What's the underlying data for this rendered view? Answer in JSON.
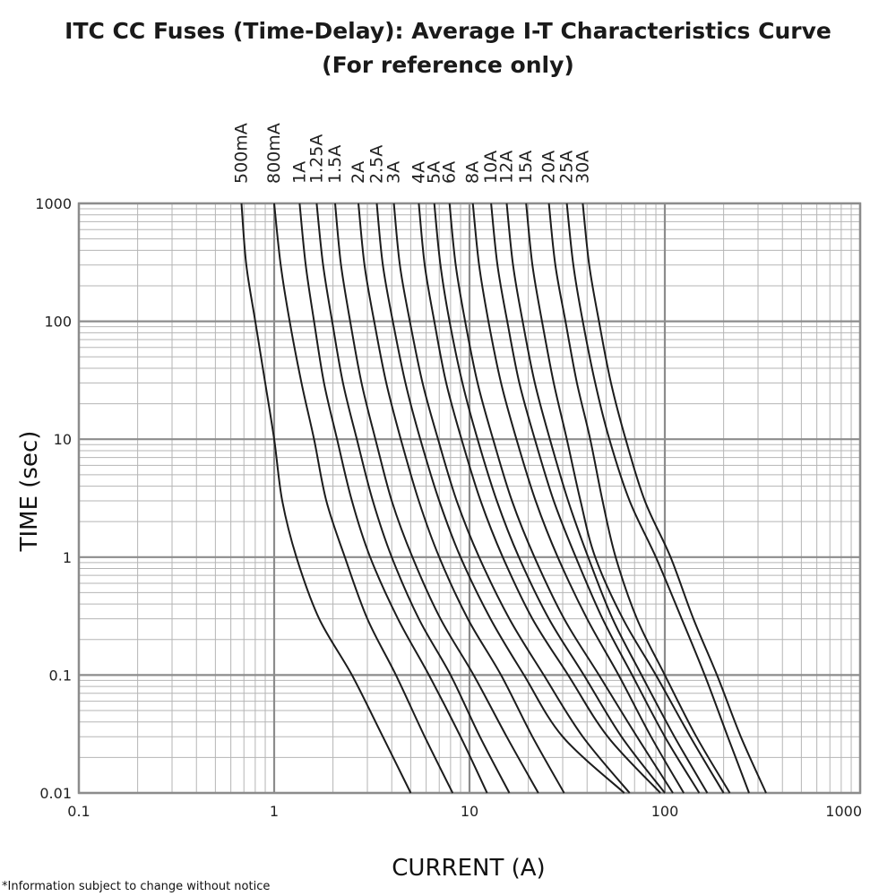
{
  "chart_data": {
    "type": "line",
    "title": "ITC CC Fuses (Time-Delay): Average I-T Characteristics Curve",
    "subtitle": "(For reference only)",
    "xlabel": "CURRENT (A)",
    "ylabel": "TIME (sec)",
    "xscale": "log",
    "yscale": "log",
    "xlim": [
      0.1,
      1000
    ],
    "ylim": [
      0.01,
      1000
    ],
    "x_ticks": [
      "0.1",
      "1",
      "10",
      "100",
      "1000"
    ],
    "y_ticks": [
      "0.01",
      "0.1",
      "1",
      "10",
      "100",
      "1000"
    ],
    "grid": true,
    "series": [
      {
        "name": "500mA",
        "points": [
          [
            0.68,
            1000
          ],
          [
            0.72,
            300
          ],
          [
            0.8,
            100
          ],
          [
            0.9,
            30
          ],
          [
            1.0,
            10
          ],
          [
            1.1,
            3
          ],
          [
            1.3,
            1
          ],
          [
            1.7,
            0.3
          ],
          [
            2.5,
            0.1
          ],
          [
            3.6,
            0.03
          ],
          [
            5.0,
            0.01
          ]
        ]
      },
      {
        "name": "800mA",
        "points": [
          [
            1.0,
            1000
          ],
          [
            1.08,
            300
          ],
          [
            1.2,
            100
          ],
          [
            1.38,
            30
          ],
          [
            1.6,
            10
          ],
          [
            1.85,
            3
          ],
          [
            2.3,
            1
          ],
          [
            3.0,
            0.3
          ],
          [
            4.2,
            0.1
          ],
          [
            5.9,
            0.03
          ],
          [
            8.2,
            0.01
          ]
        ]
      },
      {
        "name": "1A",
        "points": [
          [
            1.35,
            1000
          ],
          [
            1.45,
            300
          ],
          [
            1.6,
            100
          ],
          [
            1.8,
            30
          ],
          [
            2.1,
            10
          ],
          [
            2.5,
            3
          ],
          [
            3.1,
            1
          ],
          [
            4.3,
            0.3
          ],
          [
            6.2,
            0.1
          ],
          [
            9.0,
            0.03
          ],
          [
            12.3,
            0.01
          ]
        ]
      },
      {
        "name": "1.25A",
        "points": [
          [
            1.65,
            1000
          ],
          [
            1.78,
            300
          ],
          [
            1.98,
            100
          ],
          [
            2.25,
            30
          ],
          [
            2.65,
            10
          ],
          [
            3.2,
            3
          ],
          [
            4.0,
            1
          ],
          [
            5.5,
            0.3
          ],
          [
            8.0,
            0.1
          ],
          [
            11.3,
            0.03
          ],
          [
            16.0,
            0.01
          ]
        ]
      },
      {
        "name": "1.5A",
        "points": [
          [
            2.05,
            1000
          ],
          [
            2.2,
            300
          ],
          [
            2.45,
            100
          ],
          [
            2.8,
            30
          ],
          [
            3.3,
            10
          ],
          [
            4.0,
            3
          ],
          [
            5.1,
            1
          ],
          [
            7.1,
            0.3
          ],
          [
            10.5,
            0.1
          ],
          [
            15.5,
            0.03
          ],
          [
            22.5,
            0.01
          ]
        ]
      },
      {
        "name": "2A",
        "points": [
          [
            2.7,
            1000
          ],
          [
            2.9,
            300
          ],
          [
            3.25,
            100
          ],
          [
            3.75,
            30
          ],
          [
            4.45,
            10
          ],
          [
            5.5,
            3
          ],
          [
            7.0,
            1
          ],
          [
            9.8,
            0.3
          ],
          [
            14.5,
            0.1
          ],
          [
            21.0,
            0.03
          ],
          [
            30.5,
            0.01
          ]
        ]
      },
      {
        "name": "2.5A",
        "points": [
          [
            3.35,
            1000
          ],
          [
            3.6,
            300
          ],
          [
            4.05,
            100
          ],
          [
            4.7,
            30
          ],
          [
            5.6,
            10
          ],
          [
            7.0,
            3
          ],
          [
            9.0,
            1
          ],
          [
            12.8,
            0.3
          ],
          [
            19.0,
            0.1
          ],
          [
            30.0,
            0.03
          ],
          [
            62.0,
            0.01
          ]
        ]
      },
      {
        "name": "3A",
        "points": [
          [
            4.1,
            1000
          ],
          [
            4.4,
            300
          ],
          [
            4.95,
            100
          ],
          [
            5.75,
            30
          ],
          [
            6.9,
            10
          ],
          [
            8.6,
            3
          ],
          [
            11.2,
            1
          ],
          [
            16.0,
            0.3
          ],
          [
            24.0,
            0.1
          ],
          [
            38.0,
            0.03
          ],
          [
            66.0,
            0.01
          ]
        ]
      },
      {
        "name": "4A",
        "points": [
          [
            5.5,
            1000
          ],
          [
            5.9,
            300
          ],
          [
            6.6,
            100
          ],
          [
            7.6,
            30
          ],
          [
            9.1,
            10
          ],
          [
            11.4,
            3
          ],
          [
            14.8,
            1
          ],
          [
            21.0,
            0.3
          ],
          [
            32.0,
            0.1
          ],
          [
            51.0,
            0.03
          ],
          [
            95.0,
            0.01
          ]
        ]
      },
      {
        "name": "5A",
        "points": [
          [
            6.6,
            1000
          ],
          [
            7.1,
            300
          ],
          [
            7.9,
            100
          ],
          [
            9.2,
            30
          ],
          [
            11.0,
            10
          ],
          [
            13.8,
            3
          ],
          [
            17.9,
            1
          ],
          [
            25.5,
            0.3
          ],
          [
            38.5,
            0.1
          ],
          [
            60.0,
            0.03
          ],
          [
            100.0,
            0.01
          ]
        ]
      },
      {
        "name": "6A",
        "points": [
          [
            7.9,
            1000
          ],
          [
            8.5,
            300
          ],
          [
            9.5,
            100
          ],
          [
            11.0,
            30
          ],
          [
            13.2,
            10
          ],
          [
            16.5,
            3
          ],
          [
            21.5,
            1
          ],
          [
            30.5,
            0.3
          ],
          [
            46.0,
            0.1
          ],
          [
            72.0,
            0.03
          ],
          [
            110.0,
            0.01
          ]
        ]
      },
      {
        "name": "8A",
        "points": [
          [
            10.4,
            1000
          ],
          [
            11.2,
            300
          ],
          [
            12.5,
            100
          ],
          [
            14.5,
            30
          ],
          [
            17.4,
            10
          ],
          [
            21.8,
            3
          ],
          [
            28.3,
            1
          ],
          [
            40.0,
            0.3
          ],
          [
            58.0,
            0.1
          ],
          [
            85.0,
            0.03
          ],
          [
            125.0,
            0.01
          ]
        ]
      },
      {
        "name": "10A",
        "points": [
          [
            12.9,
            1000
          ],
          [
            13.9,
            300
          ],
          [
            15.6,
            100
          ],
          [
            18.0,
            30
          ],
          [
            21.6,
            10
          ],
          [
            27.0,
            3
          ],
          [
            35.0,
            1
          ],
          [
            48.0,
            0.3
          ],
          [
            68.0,
            0.1
          ],
          [
            100.0,
            0.03
          ],
          [
            150.0,
            0.01
          ]
        ]
      },
      {
        "name": "12A",
        "points": [
          [
            15.5,
            1000
          ],
          [
            16.7,
            300
          ],
          [
            18.7,
            100
          ],
          [
            21.6,
            30
          ],
          [
            25.8,
            10
          ],
          [
            32.0,
            3
          ],
          [
            40.5,
            1
          ],
          [
            54.0,
            0.3
          ],
          [
            76.0,
            0.1
          ],
          [
            112.0,
            0.03
          ],
          [
            165.0,
            0.01
          ]
        ]
      },
      {
        "name": "15A",
        "points": [
          [
            19.5,
            1000
          ],
          [
            21.0,
            300
          ],
          [
            23.5,
            100
          ],
          [
            27.0,
            30
          ],
          [
            31.5,
            10
          ],
          [
            37.0,
            3
          ],
          [
            44.0,
            1
          ],
          [
            61.0,
            0.3
          ],
          [
            90.0,
            0.1
          ],
          [
            135.0,
            0.03
          ],
          [
            200.0,
            0.01
          ]
        ]
      },
      {
        "name": "20A",
        "points": [
          [
            25.5,
            1000
          ],
          [
            27.5,
            300
          ],
          [
            31.0,
            100
          ],
          [
            35.5,
            30
          ],
          [
            41.5,
            10
          ],
          [
            48.0,
            3
          ],
          [
            56.0,
            1
          ],
          [
            72.0,
            0.3
          ],
          [
            100.0,
            0.1
          ],
          [
            145.0,
            0.03
          ],
          [
            215.0,
            0.01
          ]
        ]
      },
      {
        "name": "25A",
        "points": [
          [
            31.5,
            1000
          ],
          [
            34.0,
            300
          ],
          [
            38.0,
            100
          ],
          [
            44.0,
            30
          ],
          [
            52.0,
            10
          ],
          [
            66.0,
            3
          ],
          [
            90.0,
            1
          ],
          [
            122.0,
            0.3
          ],
          [
            160.0,
            0.1
          ],
          [
            210.0,
            0.03
          ],
          [
            270.0,
            0.01
          ]
        ]
      },
      {
        "name": "30A",
        "points": [
          [
            38.0,
            1000
          ],
          [
            41.0,
            300
          ],
          [
            46.0,
            100
          ],
          [
            53.0,
            30
          ],
          [
            63.0,
            10
          ],
          [
            79.0,
            3
          ],
          [
            107.0,
            1
          ],
          [
            140.0,
            0.3
          ],
          [
            185.0,
            0.1
          ],
          [
            245.0,
            0.03
          ],
          [
            330.0,
            0.01
          ]
        ]
      }
    ]
  },
  "footnote": "*Information subject to change without notice"
}
